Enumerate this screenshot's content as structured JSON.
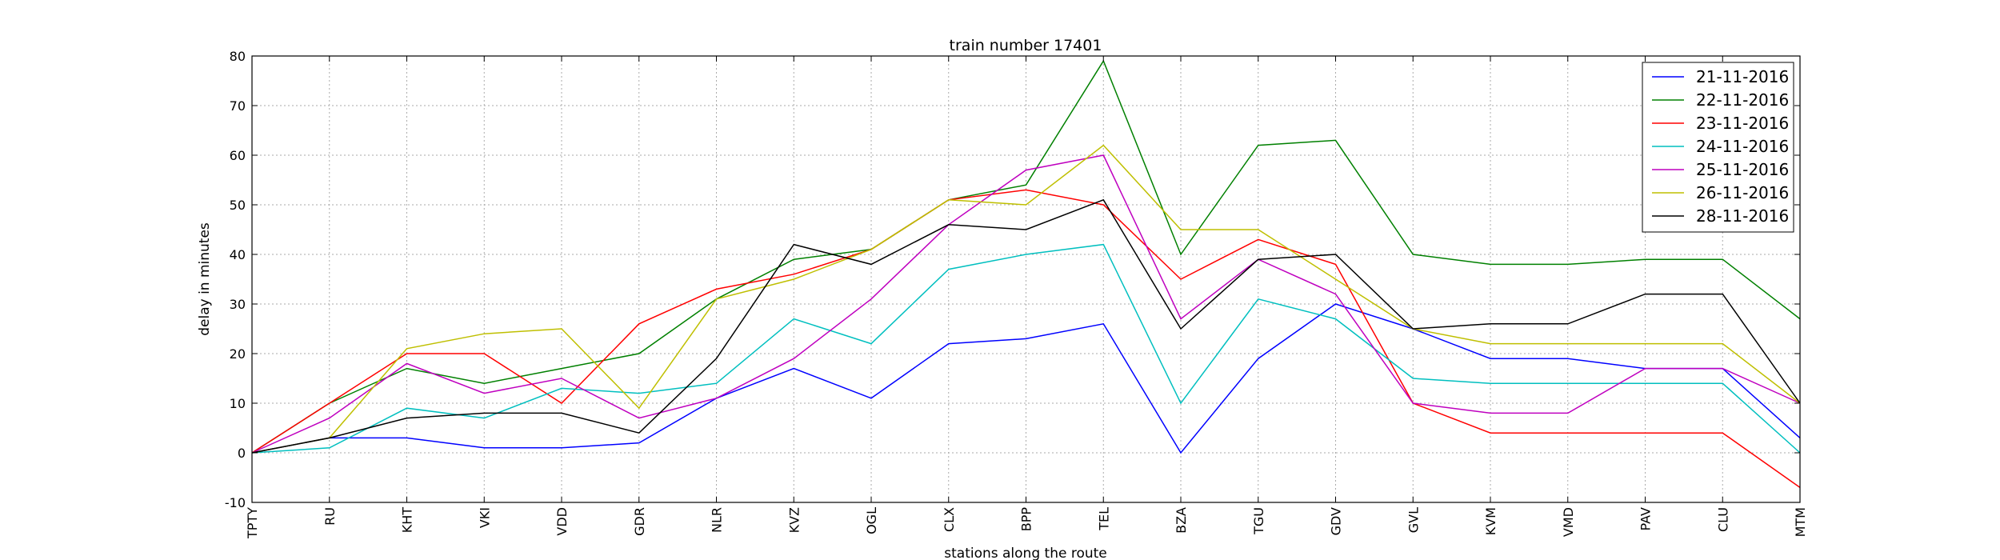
{
  "chart_data": {
    "type": "line",
    "title": "train number 17401",
    "xlabel": "stations along the route",
    "ylabel": "delay in minutes",
    "ylim": [
      -10,
      80
    ],
    "yticks": [
      -10,
      0,
      10,
      20,
      30,
      40,
      50,
      60,
      70,
      80
    ],
    "grid": true,
    "legend_position": "top-right",
    "categories": [
      "TPTY",
      "RU",
      "KHT",
      "VKI",
      "VDD",
      "GDR",
      "NLR",
      "KVZ",
      "OGL",
      "CLX",
      "BPP",
      "TEL",
      "BZA",
      "TGU",
      "GDV",
      "GVL",
      "KVM",
      "VMD",
      "PAV",
      "CLU",
      "MTM"
    ],
    "series": [
      {
        "name": "21-11-2016",
        "color": "#0000ff",
        "values": [
          0,
          3,
          3,
          1,
          1,
          2,
          11,
          17,
          11,
          22,
          23,
          26,
          0,
          19,
          30,
          25,
          19,
          19,
          17,
          17,
          3
        ]
      },
      {
        "name": "22-11-2016",
        "color": "#008000",
        "values": [
          0,
          10,
          17,
          14,
          17,
          20,
          31,
          39,
          41,
          51,
          54,
          79,
          40,
          62,
          63,
          40,
          38,
          38,
          39,
          39,
          27
        ]
      },
      {
        "name": "23-11-2016",
        "color": "#ff0000",
        "values": [
          0,
          10,
          20,
          20,
          10,
          26,
          33,
          36,
          41,
          51,
          53,
          50,
          35,
          43,
          38,
          10,
          4,
          4,
          4,
          4,
          -7
        ]
      },
      {
        "name": "24-11-2016",
        "color": "#00bfbf",
        "values": [
          0,
          1,
          9,
          7,
          13,
          12,
          14,
          27,
          22,
          37,
          40,
          42,
          10,
          31,
          27,
          15,
          14,
          14,
          14,
          14,
          0
        ]
      },
      {
        "name": "25-11-2016",
        "color": "#bf00bf",
        "values": [
          0,
          7,
          18,
          12,
          15,
          7,
          11,
          19,
          31,
          46,
          57,
          60,
          27,
          39,
          32,
          10,
          8,
          8,
          17,
          17,
          10
        ]
      },
      {
        "name": "26-11-2016",
        "color": "#bfbf00",
        "values": [
          0,
          3,
          21,
          24,
          25,
          9,
          31,
          35,
          41,
          51,
          50,
          62,
          45,
          45,
          35,
          25,
          22,
          22,
          22,
          22,
          10
        ]
      },
      {
        "name": "28-11-2016",
        "color": "#000000",
        "values": [
          0,
          3,
          7,
          8,
          8,
          4,
          19,
          42,
          38,
          46,
          45,
          51,
          25,
          39,
          40,
          25,
          26,
          26,
          32,
          32,
          10
        ]
      }
    ]
  }
}
